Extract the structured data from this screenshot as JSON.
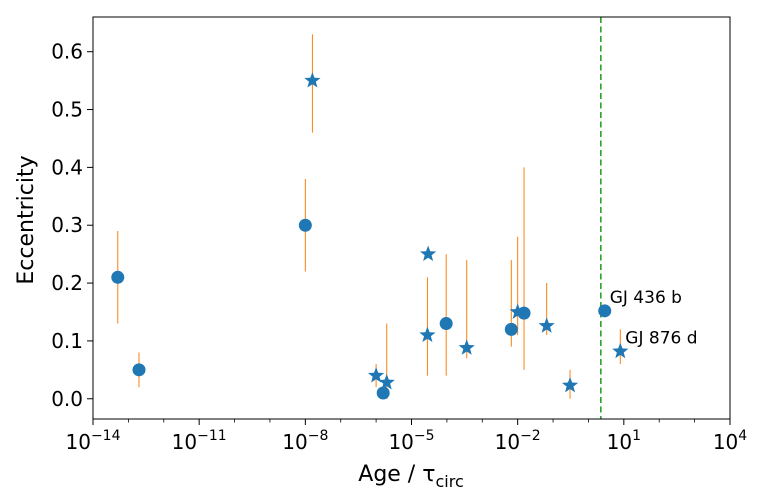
{
  "chart_data": {
    "type": "scatter",
    "xscale": "log10",
    "xlabel": "Age / τ",
    "xlabel_sub": "circ",
    "ylabel": "Eccentricity",
    "xlim_exponent": [
      -14,
      4
    ],
    "ylim": [
      -0.035,
      0.66
    ],
    "x_ticks": [
      {
        "exp": -14,
        "base": "10",
        "sup": "−14"
      },
      {
        "exp": -11,
        "base": "10",
        "sup": "−11"
      },
      {
        "exp": -8,
        "base": "10",
        "sup": "−8"
      },
      {
        "exp": -5,
        "base": "10",
        "sup": "−5"
      },
      {
        "exp": -2,
        "base": "10",
        "sup": "−2"
      },
      {
        "exp": 1,
        "base": "10",
        "sup": "1"
      },
      {
        "exp": 4,
        "base": "10",
        "sup": "4"
      }
    ],
    "y_ticks": [
      {
        "value": 0.0,
        "label": "0.0"
      },
      {
        "value": 0.1,
        "label": "0.1"
      },
      {
        "value": 0.2,
        "label": "0.2"
      },
      {
        "value": 0.3,
        "label": "0.3"
      },
      {
        "value": 0.4,
        "label": "0.4"
      },
      {
        "value": 0.5,
        "label": "0.5"
      },
      {
        "value": 0.6,
        "label": "0.6"
      }
    ],
    "vline": {
      "log_x": 0.35,
      "color": "#2ca02c",
      "style": "dashed"
    },
    "marker_color": "#1f77b4",
    "errorbar_color": "#ff7f0e",
    "series": [
      {
        "name": "circles",
        "marker": "circle",
        "points": [
          {
            "log_x": -13.3,
            "y": 0.21,
            "ylo": 0.13,
            "yhi": 0.29
          },
          {
            "log_x": -12.7,
            "y": 0.05,
            "ylo": 0.02,
            "yhi": 0.08
          },
          {
            "log_x": -8.0,
            "y": 0.3,
            "ylo": 0.22,
            "yhi": 0.38
          },
          {
            "log_x": -5.8,
            "y": 0.01,
            "ylo": 0.0,
            "yhi": 0.02
          },
          {
            "log_x": -4.02,
            "y": 0.13,
            "ylo": 0.04,
            "yhi": 0.25
          },
          {
            "log_x": -2.18,
            "y": 0.12,
            "ylo": 0.09,
            "yhi": 0.24
          },
          {
            "log_x": -1.82,
            "y": 0.148,
            "ylo": 0.05,
            "yhi": 0.4
          },
          {
            "log_x": 0.46,
            "y": 0.152,
            "ylo": 0.152,
            "yhi": 0.152,
            "label": "GJ 436 b"
          }
        ]
      },
      {
        "name": "stars",
        "marker": "star",
        "points": [
          {
            "log_x": -7.8,
            "y": 0.55,
            "ylo": 0.46,
            "yhi": 0.63
          },
          {
            "log_x": -6.0,
            "y": 0.04,
            "ylo": 0.02,
            "yhi": 0.06
          },
          {
            "log_x": -5.7,
            "y": 0.028,
            "ylo": 0.0,
            "yhi": 0.13
          },
          {
            "log_x": -4.53,
            "y": 0.25,
            "ylo": 0.25,
            "yhi": 0.25
          },
          {
            "log_x": -4.55,
            "y": 0.11,
            "ylo": 0.04,
            "yhi": 0.21
          },
          {
            "log_x": -3.44,
            "y": 0.088,
            "ylo": 0.07,
            "yhi": 0.24
          },
          {
            "log_x": -2.0,
            "y": 0.15,
            "ylo": 0.11,
            "yhi": 0.28
          },
          {
            "log_x": -1.18,
            "y": 0.126,
            "ylo": 0.11,
            "yhi": 0.2
          },
          {
            "log_x": -0.52,
            "y": 0.023,
            "ylo": 0.0,
            "yhi": 0.05
          },
          {
            "log_x": 0.9,
            "y": 0.082,
            "ylo": 0.06,
            "yhi": 0.12,
            "label": "GJ 876 d"
          }
        ]
      }
    ]
  }
}
